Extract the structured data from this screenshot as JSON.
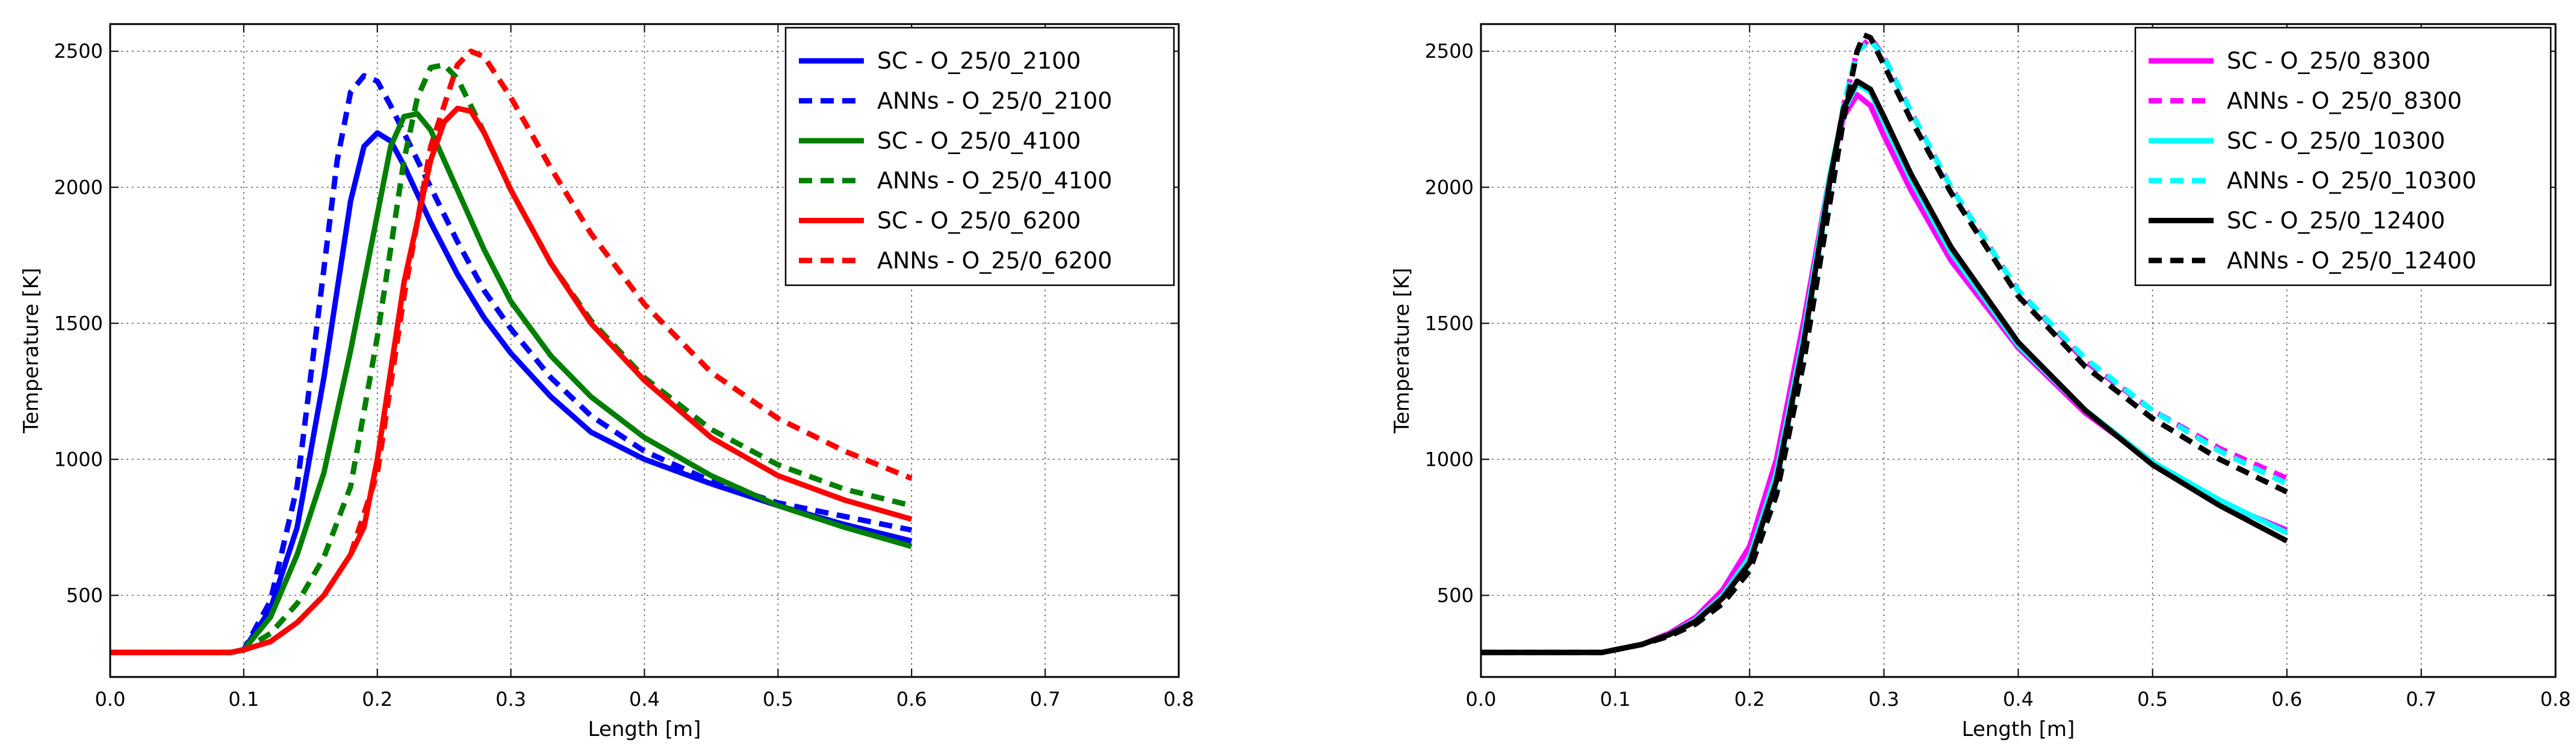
{
  "chart_data": [
    {
      "type": "line",
      "title": "",
      "xlabel": "Length [m]",
      "ylabel": "Temperature [K]",
      "xlim": [
        0.0,
        0.8
      ],
      "ylim": [
        200,
        2600
      ],
      "xticks": [
        "0.0",
        "0.1",
        "0.2",
        "0.3",
        "0.4",
        "0.5",
        "0.6",
        "0.7",
        "0.8"
      ],
      "yticks": [
        "500",
        "1000",
        "1500",
        "2000",
        "2500"
      ],
      "grid": true,
      "legend_position": "top-right",
      "series": [
        {
          "name": "SC - O_25/0_2100",
          "color": "#0000ff",
          "dash": "solid",
          "x": [
            0,
            0.09,
            0.1,
            0.12,
            0.14,
            0.16,
            0.18,
            0.19,
            0.2,
            0.21,
            0.22,
            0.24,
            0.26,
            0.28,
            0.3,
            0.33,
            0.36,
            0.4,
            0.45,
            0.5,
            0.55,
            0.6
          ],
          "y": [
            290,
            290,
            300,
            450,
            750,
            1300,
            1950,
            2150,
            2200,
            2170,
            2080,
            1870,
            1680,
            1520,
            1390,
            1230,
            1100,
            1000,
            910,
            830,
            760,
            700
          ]
        },
        {
          "name": "ANNs - O_25/0_2100",
          "color": "#0000ff",
          "dash": "dashed",
          "x": [
            0,
            0.09,
            0.1,
            0.12,
            0.14,
            0.16,
            0.17,
            0.18,
            0.19,
            0.2,
            0.21,
            0.22,
            0.24,
            0.26,
            0.28,
            0.3,
            0.33,
            0.36,
            0.4,
            0.45,
            0.5,
            0.55,
            0.6
          ],
          "y": [
            290,
            290,
            300,
            480,
            900,
            1700,
            2100,
            2350,
            2410,
            2390,
            2300,
            2200,
            2000,
            1800,
            1620,
            1480,
            1300,
            1160,
            1030,
            920,
            840,
            790,
            740
          ]
        },
        {
          "name": "SC - O_25/0_4100",
          "color": "#007f00",
          "dash": "solid",
          "x": [
            0,
            0.09,
            0.1,
            0.12,
            0.14,
            0.16,
            0.18,
            0.2,
            0.21,
            0.22,
            0.23,
            0.24,
            0.26,
            0.28,
            0.3,
            0.33,
            0.36,
            0.4,
            0.45,
            0.5,
            0.55,
            0.6
          ],
          "y": [
            290,
            290,
            300,
            420,
            650,
            950,
            1400,
            1900,
            2150,
            2260,
            2270,
            2210,
            1990,
            1770,
            1580,
            1380,
            1230,
            1080,
            940,
            830,
            750,
            680
          ]
        },
        {
          "name": "ANNs - O_25/0_4100",
          "color": "#007f00",
          "dash": "dashed",
          "x": [
            0,
            0.09,
            0.1,
            0.12,
            0.14,
            0.16,
            0.18,
            0.2,
            0.22,
            0.23,
            0.24,
            0.25,
            0.26,
            0.28,
            0.3,
            0.33,
            0.36,
            0.4,
            0.45,
            0.5,
            0.55,
            0.6
          ],
          "y": [
            290,
            290,
            300,
            360,
            470,
            640,
            900,
            1450,
            2100,
            2330,
            2440,
            2450,
            2400,
            2200,
            1990,
            1720,
            1510,
            1300,
            1110,
            980,
            890,
            830
          ]
        },
        {
          "name": "SC - O_25/0_6200",
          "color": "#ff0000",
          "dash": "solid",
          "x": [
            0,
            0.09,
            0.1,
            0.12,
            0.14,
            0.16,
            0.18,
            0.19,
            0.2,
            0.22,
            0.24,
            0.25,
            0.26,
            0.27,
            0.28,
            0.3,
            0.33,
            0.36,
            0.4,
            0.45,
            0.5,
            0.55,
            0.6
          ],
          "y": [
            290,
            290,
            300,
            330,
            400,
            500,
            650,
            750,
            1000,
            1650,
            2100,
            2240,
            2290,
            2280,
            2200,
            1990,
            1720,
            1500,
            1290,
            1080,
            940,
            850,
            780
          ]
        },
        {
          "name": "ANNs - O_25/0_6200",
          "color": "#ff0000",
          "dash": "dashed",
          "x": [
            0,
            0.09,
            0.1,
            0.12,
            0.14,
            0.16,
            0.18,
            0.2,
            0.22,
            0.24,
            0.26,
            0.27,
            0.28,
            0.3,
            0.33,
            0.36,
            0.4,
            0.45,
            0.5,
            0.55,
            0.6
          ],
          "y": [
            290,
            290,
            300,
            330,
            400,
            500,
            650,
            950,
            1600,
            2150,
            2450,
            2500,
            2480,
            2330,
            2070,
            1830,
            1570,
            1320,
            1150,
            1030,
            930
          ]
        }
      ]
    },
    {
      "type": "line",
      "title": "",
      "xlabel": "Length [m]",
      "ylabel": "Temperature [K]",
      "xlim": [
        0.0,
        0.8
      ],
      "ylim": [
        200,
        2600
      ],
      "xticks": [
        "0.0",
        "0.1",
        "0.2",
        "0.3",
        "0.4",
        "0.5",
        "0.6",
        "0.7",
        "0.8"
      ],
      "yticks": [
        "500",
        "1000",
        "1500",
        "2000",
        "2500"
      ],
      "grid": true,
      "legend_position": "top-right",
      "series": [
        {
          "name": "SC - O_25/0_8300",
          "color": "#ff00ff",
          "dash": "solid",
          "x": [
            0,
            0.09,
            0.1,
            0.12,
            0.14,
            0.16,
            0.18,
            0.2,
            0.22,
            0.24,
            0.26,
            0.27,
            0.28,
            0.29,
            0.3,
            0.32,
            0.35,
            0.4,
            0.45,
            0.5,
            0.55,
            0.6
          ],
          "y": [
            290,
            290,
            300,
            320,
            360,
            420,
            520,
            680,
            1000,
            1500,
            2050,
            2260,
            2340,
            2300,
            2190,
            1990,
            1730,
            1410,
            1170,
            990,
            840,
            740
          ]
        },
        {
          "name": "ANNs - O_25/0_8300",
          "color": "#ff00ff",
          "dash": "dashed",
          "x": [
            0,
            0.09,
            0.1,
            0.12,
            0.14,
            0.16,
            0.18,
            0.2,
            0.22,
            0.24,
            0.26,
            0.27,
            0.28,
            0.29,
            0.3,
            0.32,
            0.35,
            0.4,
            0.45,
            0.5,
            0.55,
            0.6
          ],
          "y": [
            290,
            290,
            300,
            320,
            360,
            410,
            500,
            640,
            950,
            1450,
            2020,
            2300,
            2500,
            2550,
            2480,
            2280,
            2000,
            1620,
            1360,
            1180,
            1040,
            930
          ]
        },
        {
          "name": "SC - O_25/0_10300",
          "color": "#00ffff",
          "dash": "solid",
          "x": [
            0,
            0.09,
            0.1,
            0.12,
            0.14,
            0.16,
            0.18,
            0.2,
            0.22,
            0.24,
            0.26,
            0.27,
            0.28,
            0.29,
            0.3,
            0.32,
            0.35,
            0.4,
            0.45,
            0.5,
            0.55,
            0.6
          ],
          "y": [
            290,
            290,
            300,
            320,
            355,
            410,
            500,
            640,
            950,
            1450,
            2050,
            2280,
            2380,
            2350,
            2240,
            2030,
            1760,
            1420,
            1180,
            990,
            850,
            730
          ]
        },
        {
          "name": "ANNs - O_25/0_10300",
          "color": "#00ffff",
          "dash": "dashed",
          "x": [
            0,
            0.09,
            0.1,
            0.12,
            0.14,
            0.16,
            0.18,
            0.2,
            0.22,
            0.24,
            0.26,
            0.27,
            0.28,
            0.29,
            0.3,
            0.32,
            0.35,
            0.4,
            0.45,
            0.5,
            0.55,
            0.6
          ],
          "y": [
            290,
            290,
            300,
            320,
            355,
            400,
            480,
            610,
            900,
            1400,
            2000,
            2300,
            2500,
            2540,
            2480,
            2280,
            2000,
            1620,
            1370,
            1180,
            1030,
            910
          ]
        },
        {
          "name": "SC - O_25/0_12400",
          "color": "#000000",
          "dash": "solid",
          "x": [
            0,
            0.09,
            0.1,
            0.12,
            0.14,
            0.16,
            0.18,
            0.2,
            0.22,
            0.24,
            0.26,
            0.27,
            0.28,
            0.29,
            0.3,
            0.32,
            0.35,
            0.4,
            0.45,
            0.5,
            0.55,
            0.6
          ],
          "y": [
            290,
            290,
            300,
            320,
            355,
            405,
            490,
            620,
            920,
            1420,
            2030,
            2290,
            2390,
            2360,
            2260,
            2050,
            1780,
            1430,
            1180,
            980,
            830,
            700
          ]
        },
        {
          "name": "ANNs - O_25/0_12400",
          "color": "#000000",
          "dash": "dashed",
          "x": [
            0,
            0.09,
            0.1,
            0.12,
            0.14,
            0.16,
            0.18,
            0.2,
            0.22,
            0.24,
            0.26,
            0.27,
            0.28,
            0.285,
            0.29,
            0.3,
            0.32,
            0.35,
            0.4,
            0.45,
            0.5,
            0.55,
            0.6
          ],
          "y": [
            290,
            290,
            300,
            320,
            350,
            395,
            470,
            590,
            870,
            1350,
            1950,
            2250,
            2500,
            2560,
            2550,
            2450,
            2250,
            1980,
            1600,
            1340,
            1150,
            1000,
            880
          ]
        }
      ]
    }
  ]
}
